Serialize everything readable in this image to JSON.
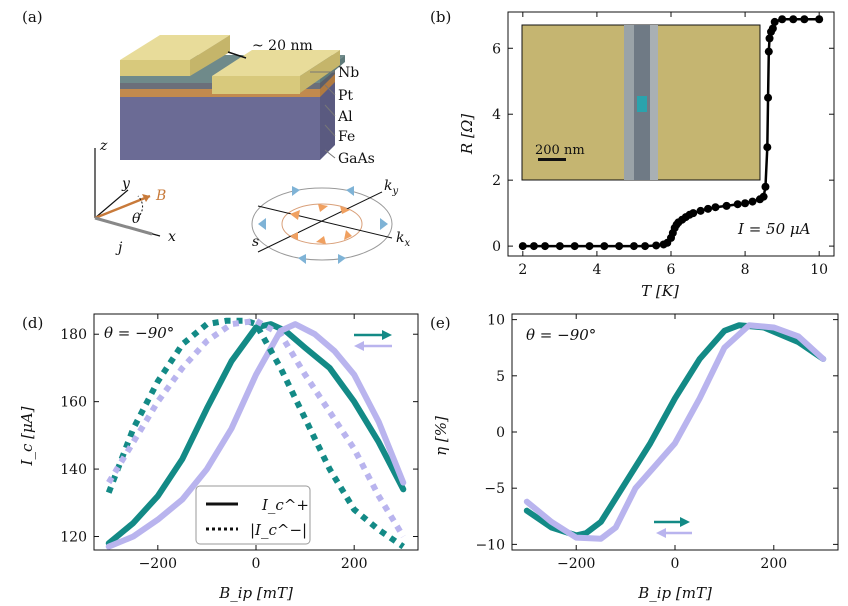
{
  "panel_labels": {
    "a": "(a)",
    "b": "(b)",
    "d": "(d)",
    "e": "(e)"
  },
  "panel_a": {
    "gap_label": "~ 20 nm",
    "layers": [
      "Nb",
      "Pt",
      "Al",
      "Fe",
      "GaAs"
    ],
    "axis_labels": {
      "z": "z",
      "y": "y",
      "x": "x",
      "B": "B",
      "j": "j",
      "theta": "θ"
    },
    "k_labels": {
      "ky": "k",
      "ky_sub": "y",
      "kx": "k",
      "kx_sub": "x",
      "s": "s"
    },
    "colors": {
      "nb": "#d8c97c",
      "pt": "#6f8a8a",
      "al": "#6b6f7a",
      "fe": "#c28a4e",
      "gaas": "#6b6b95",
      "B_arrow": "#c87a3a",
      "spin_outer": "#7fb3d6",
      "spin_inner": "#f0a060"
    }
  },
  "chart_data": [
    {
      "id": "b",
      "type": "scatter",
      "xlabel": "T [K]",
      "ylabel": "R [Ω]",
      "xlim": [
        1.6,
        10.4
      ],
      "ylim": [
        -0.3,
        7.1
      ],
      "xticks": [
        2,
        4,
        6,
        8,
        10
      ],
      "yticks": [
        0,
        2,
        4,
        6
      ],
      "annotation": "I = 50 μA",
      "inset_scalebar": "200 nm",
      "colors": {
        "line": "#000000",
        "inset_bg": "#c5b571",
        "inset_strip": "#6f7a85",
        "inset_gap": "#2aa3ad"
      },
      "series": [
        {
          "x": [
            2.0,
            2.3,
            2.6,
            3.0,
            3.4,
            3.8,
            4.2,
            4.6,
            5.0,
            5.3,
            5.6,
            5.8,
            5.9,
            6.0,
            6.05,
            6.1,
            6.15,
            6.2,
            6.3,
            6.4,
            6.5,
            6.6,
            6.8,
            7.0,
            7.2,
            7.5,
            7.8,
            8.0,
            8.2,
            8.4,
            8.5,
            8.55,
            8.6,
            8.62,
            8.64,
            8.66,
            8.7,
            8.75,
            8.8,
            9.0,
            9.3,
            9.6,
            10.0
          ],
          "y": [
            0.0,
            0.0,
            0.0,
            0.0,
            0.0,
            0.0,
            0.0,
            0.0,
            0.0,
            0.0,
            0.02,
            0.05,
            0.1,
            0.25,
            0.4,
            0.55,
            0.65,
            0.72,
            0.8,
            0.88,
            0.95,
            1.0,
            1.07,
            1.13,
            1.18,
            1.22,
            1.27,
            1.3,
            1.35,
            1.42,
            1.5,
            1.8,
            3.0,
            4.5,
            5.9,
            6.3,
            6.5,
            6.6,
            6.8,
            6.88,
            6.88,
            6.88,
            6.88
          ]
        }
      ]
    },
    {
      "id": "d",
      "type": "line",
      "xlabel": "B_ip [mT]",
      "ylabel": "I_c [μA]",
      "xlim": [
        -330,
        330
      ],
      "ylim": [
        116,
        186
      ],
      "xticks": [
        -200,
        0,
        200
      ],
      "yticks": [
        120,
        140,
        160,
        180
      ],
      "annotation": "θ = −90°",
      "legend": [
        {
          "label": "I_c^+",
          "style": "solid"
        },
        {
          "label": "|I_c^−|",
          "style": "dotted"
        }
      ],
      "legend_placement": "bottom-center",
      "colors": {
        "teal": "#138a86",
        "lavender": "#b9b4ee"
      },
      "series": [
        {
          "name": "Ic+ up",
          "color": "teal",
          "style": "solid",
          "x": [
            -300,
            -250,
            -200,
            -150,
            -100,
            -50,
            0,
            30,
            60,
            100,
            150,
            200,
            250,
            300
          ],
          "y": [
            118,
            124,
            132,
            143,
            158,
            172,
            182,
            183,
            181,
            176,
            170,
            160,
            148,
            134
          ]
        },
        {
          "name": "Ic+ down",
          "color": "lavender",
          "style": "solid",
          "x": [
            -300,
            -250,
            -200,
            -150,
            -100,
            -50,
            0,
            50,
            80,
            120,
            160,
            200,
            250,
            300
          ],
          "y": [
            117,
            120,
            125,
            131,
            140,
            152,
            168,
            181,
            183,
            180,
            175,
            168,
            154,
            136
          ]
        },
        {
          "name": "Ic- up",
          "color": "teal",
          "style": "dotted",
          "x": [
            -300,
            -250,
            -200,
            -150,
            -100,
            -60,
            -20,
            0,
            50,
            100,
            150,
            200,
            250,
            300
          ],
          "y": [
            133,
            152,
            166,
            177,
            183,
            184,
            184,
            183,
            170,
            155,
            140,
            128,
            122,
            117
          ]
        },
        {
          "name": "Ic- down",
          "color": "lavender",
          "style": "dotted",
          "x": [
            -300,
            -250,
            -200,
            -150,
            -100,
            -50,
            0,
            50,
            100,
            150,
            200,
            250,
            300
          ],
          "y": [
            136,
            148,
            160,
            170,
            178,
            183,
            184,
            180,
            168,
            157,
            146,
            132,
            120
          ]
        }
      ],
      "arrows": [
        {
          "direction": "right",
          "color": "teal"
        },
        {
          "direction": "left",
          "color": "lavender"
        }
      ]
    },
    {
      "id": "e",
      "type": "line",
      "xlabel": "B_ip [mT]",
      "ylabel": "η [%]",
      "xlim": [
        -330,
        330
      ],
      "ylim": [
        -10.5,
        10.5
      ],
      "xticks": [
        -200,
        0,
        200
      ],
      "yticks": [
        -10,
        -5,
        0,
        5,
        10
      ],
      "annotation": "θ = −90°",
      "colors": {
        "teal": "#138a86",
        "lavender": "#b9b4ee"
      },
      "series": [
        {
          "name": "eta up",
          "color": "teal",
          "style": "solid",
          "x": [
            -300,
            -250,
            -200,
            -180,
            -150,
            -100,
            -50,
            0,
            50,
            100,
            130,
            180,
            250,
            300
          ],
          "y": [
            -7,
            -8.5,
            -9.2,
            -9,
            -8,
            -4.5,
            -1,
            3,
            6.5,
            9,
            9.5,
            9.3,
            8,
            6.5
          ]
        },
        {
          "name": "eta down",
          "color": "lavender",
          "style": "solid",
          "x": [
            -300,
            -250,
            -200,
            -150,
            -120,
            -80,
            -40,
            0,
            50,
            100,
            150,
            200,
            250,
            300
          ],
          "y": [
            -6.2,
            -8,
            -9.4,
            -9.5,
            -8.5,
            -5,
            -3,
            -1,
            3,
            7.5,
            9.5,
            9.3,
            8.5,
            6.5
          ]
        }
      ],
      "arrows": [
        {
          "direction": "right",
          "color": "teal"
        },
        {
          "direction": "left",
          "color": "lavender"
        }
      ]
    }
  ]
}
